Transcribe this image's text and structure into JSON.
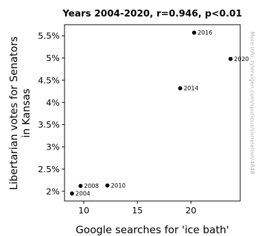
{
  "chart_data": {
    "type": "scatter",
    "title": "Years 2004-2020, r=0.946, p<0.01",
    "xlabel": "Google searches for 'ice bath'",
    "ylabel": "Libertarian votes for Senators in Kansas",
    "ylabel_lines": [
      "Libertarian votes for Senators",
      "in Kansas"
    ],
    "xlim": [
      8.2,
      24.6
    ],
    "ylim": [
      1.78,
      5.75
    ],
    "xticks": [
      10,
      15,
      20
    ],
    "xtick_labels": [
      "10",
      "15",
      "20"
    ],
    "yticks": [
      2.0,
      2.5,
      3.0,
      3.5,
      4.0,
      4.5,
      5.0,
      5.5
    ],
    "ytick_labels": [
      "2%",
      "2.5%",
      "3%",
      "3.5%",
      "4%",
      "4.5%",
      "5%",
      "5.5%"
    ],
    "grid": false,
    "points": [
      {
        "label": "2004",
        "x": 8.9,
        "y": 1.95
      },
      {
        "label": "2008",
        "x": 9.7,
        "y": 2.12
      },
      {
        "label": "2010",
        "x": 12.2,
        "y": 2.13
      },
      {
        "label": "2014",
        "x": 19.0,
        "y": 4.32
      },
      {
        "label": "2016",
        "x": 20.3,
        "y": 5.57
      },
      {
        "label": "2020",
        "x": 23.7,
        "y": 4.98
      }
    ],
    "marker_color": "#000000"
  },
  "watermark": "More info: tylervigen.com/spurious/correlation/4848"
}
